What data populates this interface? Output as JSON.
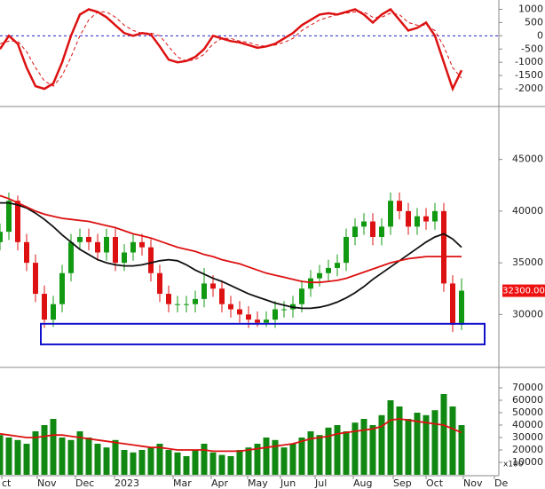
{
  "chart_data": [
    {
      "type": "line",
      "x": [
        0,
        1,
        2,
        3,
        4,
        5,
        6,
        7,
        8,
        9,
        10,
        11,
        12,
        13,
        14,
        15,
        16,
        17,
        18,
        19,
        20,
        21,
        22,
        23,
        24,
        25,
        26,
        27,
        28,
        29,
        30,
        31,
        32,
        33,
        34,
        35,
        36,
        37,
        38,
        39,
        40,
        41,
        42,
        43,
        44,
        45,
        46,
        47,
        48,
        49,
        50,
        51,
        52
      ],
      "xlim": [
        0,
        56.2
      ],
      "ylim": [
        -2600,
        1350
      ],
      "yticks": [
        1000,
        500,
        0,
        -500,
        -1000,
        -1500,
        -2000
      ],
      "zero_line_color": "#2222cc",
      "series": [
        {
          "color": "#dd1111",
          "width": 2.5,
          "dashed": false,
          "values": [
            -500,
            0,
            -300,
            -1200,
            -1900,
            -2000,
            -1800,
            -1000,
            0,
            800,
            1000,
            900,
            700,
            400,
            100,
            0,
            100,
            50,
            -400,
            -900,
            -1000,
            -950,
            -800,
            -500,
            0,
            -100,
            -200,
            -250,
            -350,
            -450,
            -400,
            -300,
            -100,
            100,
            400,
            600,
            800,
            850,
            800,
            900,
            1000,
            800,
            500,
            800,
            1000,
            600,
            200,
            300,
            500,
            0,
            -1000,
            -2000,
            -1300
          ]
        },
        {
          "color": "#dd1111",
          "width": 1,
          "dashed": true,
          "values": [
            -300,
            -200,
            -200,
            -600,
            -1200,
            -1700,
            -1900,
            -1500,
            -800,
            0,
            600,
            900,
            900,
            700,
            400,
            200,
            100,
            100,
            0,
            -400,
            -800,
            -950,
            -900,
            -700,
            -300,
            -100,
            -100,
            -200,
            -250,
            -350,
            -400,
            -350,
            -250,
            -100,
            200,
            400,
            600,
            700,
            800,
            850,
            900,
            900,
            700,
            700,
            850,
            800,
            500,
            400,
            400,
            200,
            -400,
            -1200,
            -1600
          ]
        }
      ]
    },
    {
      "type": "candlestick",
      "x": [
        0,
        1,
        2,
        3,
        4,
        5,
        6,
        7,
        8,
        9,
        10,
        11,
        12,
        13,
        14,
        15,
        16,
        17,
        18,
        19,
        20,
        21,
        22,
        23,
        24,
        25,
        26,
        27,
        28,
        29,
        30,
        31,
        32,
        33,
        34,
        35,
        36,
        37,
        38,
        39,
        40,
        41,
        42,
        43,
        44,
        45,
        46,
        47,
        48,
        49,
        50,
        51,
        52
      ],
      "xlim": [
        0,
        56.2
      ],
      "ylim": [
        25050,
        49950
      ],
      "yticks": [
        45000,
        40000,
        35000,
        30000
      ],
      "up_color": "#119911",
      "down_color": "#dd1111",
      "open": [
        37000,
        38000,
        41000,
        37000,
        35000,
        32000,
        29500,
        31000,
        34000,
        37000,
        37500,
        37000,
        36000,
        37500,
        35000,
        36000,
        37000,
        36500,
        34000,
        32000,
        31000,
        31000,
        31000,
        31500,
        33000,
        32500,
        31000,
        30500,
        30000,
        29500,
        29200,
        29500,
        30500,
        30500,
        31000,
        32500,
        33500,
        34000,
        34500,
        35000,
        37500,
        38500,
        39000,
        37500,
        38500,
        41000,
        40000,
        38500,
        39500,
        39000,
        40000,
        33000,
        29000
      ],
      "high": [
        38800,
        41800,
        41500,
        37800,
        35800,
        32800,
        31800,
        34800,
        37800,
        38300,
        38300,
        37800,
        38300,
        38300,
        36800,
        37800,
        37800,
        37300,
        34800,
        32800,
        31800,
        31800,
        32300,
        34500,
        33800,
        33300,
        31800,
        31300,
        30800,
        30300,
        30300,
        31300,
        31300,
        31800,
        33300,
        34300,
        34800,
        35300,
        35800,
        38300,
        39300,
        39800,
        39800,
        39300,
        41800,
        41800,
        40800,
        40300,
        40300,
        40800,
        40800,
        33800,
        33500
      ],
      "low": [
        36200,
        37200,
        36200,
        34200,
        31200,
        28700,
        28800,
        30200,
        33200,
        36200,
        36200,
        35200,
        35200,
        34200,
        34200,
        35200,
        35700,
        33200,
        31200,
        30200,
        30200,
        30200,
        30200,
        30700,
        31700,
        30200,
        29700,
        29200,
        28700,
        28800,
        28800,
        28700,
        29700,
        29700,
        30200,
        31700,
        32700,
        33200,
        33700,
        34200,
        36700,
        37700,
        36700,
        36700,
        37700,
        39200,
        37700,
        37700,
        38200,
        38200,
        32200,
        28300,
        28500
      ],
      "close": [
        38000,
        41000,
        37000,
        35000,
        32000,
        29500,
        31000,
        34000,
        37000,
        37500,
        37000,
        36000,
        37500,
        35000,
        36000,
        37000,
        36500,
        34000,
        32000,
        31000,
        31000,
        31000,
        31500,
        33000,
        32500,
        31000,
        30500,
        30000,
        29500,
        29200,
        29500,
        30500,
        30500,
        31000,
        32500,
        33500,
        34000,
        34500,
        35000,
        37500,
        38500,
        39000,
        37500,
        38500,
        41000,
        40000,
        38500,
        39500,
        39000,
        40000,
        33000,
        29000,
        32300
      ],
      "series": [
        {
          "color": "#111111",
          "values": [
            40800,
            40800,
            40600,
            40300,
            39800,
            39200,
            38500,
            37700,
            37000,
            36300,
            35800,
            35300,
            35000,
            34800,
            34700,
            34700,
            34800,
            35000,
            35200,
            35300,
            35200,
            34800,
            34300,
            33900,
            33500,
            33200,
            32800,
            32400,
            32000,
            31700,
            31400,
            31100,
            30900,
            30700,
            30600,
            30600,
            30700,
            30900,
            31200,
            31600,
            32100,
            32700,
            33400,
            34000,
            34600,
            35200,
            35800,
            36400,
            37000,
            37500,
            37800,
            37300,
            36500
          ]
        },
        {
          "color": "#dd1111",
          "values": [
            41500,
            41200,
            40800,
            40400,
            40000,
            39700,
            39500,
            39300,
            39200,
            39100,
            39000,
            38800,
            38600,
            38400,
            38100,
            37800,
            37600,
            37400,
            37100,
            36800,
            36500,
            36300,
            36100,
            35800,
            35600,
            35300,
            35100,
            34900,
            34600,
            34300,
            34000,
            33800,
            33600,
            33400,
            33200,
            33100,
            33100,
            33200,
            33300,
            33500,
            33800,
            34100,
            34400,
            34700,
            35000,
            35200,
            35400,
            35500,
            35600,
            35600,
            35600,
            35600,
            35600
          ]
        }
      ],
      "last_price_label": "32300.00",
      "last_price_color": "#ee1111",
      "zone": {
        "color": "#1111cc",
        "xrange": [
          4.6,
          54.6
        ],
        "yrange": [
          27100,
          29100
        ]
      }
    },
    {
      "type": "bar",
      "x": [
        0,
        1,
        2,
        3,
        4,
        5,
        6,
        7,
        8,
        9,
        10,
        11,
        12,
        13,
        14,
        15,
        16,
        17,
        18,
        19,
        20,
        21,
        22,
        23,
        24,
        25,
        26,
        27,
        28,
        29,
        30,
        31,
        32,
        33,
        34,
        35,
        36,
        37,
        38,
        39,
        40,
        41,
        42,
        43,
        44,
        45,
        46,
        47,
        48,
        49,
        50,
        51,
        52
      ],
      "xlim": [
        0,
        56.2
      ],
      "ylim": [
        0,
        85000
      ],
      "yticks": [
        70000,
        60000,
        50000,
        40000,
        30000,
        20000,
        10000
      ],
      "unit_label": "x100",
      "color": "#118811",
      "values": [
        32000,
        30000,
        28000,
        25000,
        35000,
        40000,
        45000,
        30000,
        28000,
        35000,
        30000,
        25000,
        22000,
        28000,
        20000,
        18000,
        20000,
        22000,
        25000,
        20000,
        18000,
        15000,
        20000,
        25000,
        18000,
        16000,
        15000,
        20000,
        22000,
        25000,
        30000,
        28000,
        22000,
        25000,
        30000,
        35000,
        32000,
        38000,
        40000,
        35000,
        42000,
        45000,
        40000,
        48000,
        60000,
        55000,
        45000,
        50000,
        48000,
        52000,
        65000,
        55000,
        40000
      ],
      "series": [
        {
          "color": "#dd1111",
          "values": [
            33000,
            32000,
            31000,
            30000,
            30000,
            31000,
            32000,
            32000,
            31000,
            30000,
            29000,
            28000,
            27000,
            26000,
            25000,
            24000,
            23000,
            22000,
            22000,
            21000,
            20000,
            20000,
            20000,
            20000,
            19000,
            19000,
            19000,
            19000,
            20000,
            21000,
            22000,
            23000,
            24000,
            25000,
            27000,
            29000,
            30000,
            31000,
            33000,
            34000,
            35000,
            36000,
            37000,
            39000,
            44000,
            45000,
            44000,
            43000,
            42000,
            41000,
            40000,
            37000,
            34000
          ]
        }
      ],
      "xticks": [
        {
          "value": 0.2,
          "label": "ct"
        },
        {
          "value": 4.2,
          "label": "Nov"
        },
        {
          "value": 8.5,
          "label": "Dec"
        },
        {
          "value": 12.9,
          "label": "2023"
        },
        {
          "value": 19.5,
          "label": "Mar"
        },
        {
          "value": 23.8,
          "label": "Apr"
        },
        {
          "value": 27.9,
          "label": "May"
        },
        {
          "value": 31.6,
          "label": "Jun"
        },
        {
          "value": 35.5,
          "label": "Jul"
        },
        {
          "value": 39.8,
          "label": "Aug"
        },
        {
          "value": 44.3,
          "label": "Sep"
        },
        {
          "value": 48.0,
          "label": "Oct"
        },
        {
          "value": 52.2,
          "label": "Nov"
        },
        {
          "value": 55.7,
          "label": "De"
        }
      ]
    }
  ]
}
